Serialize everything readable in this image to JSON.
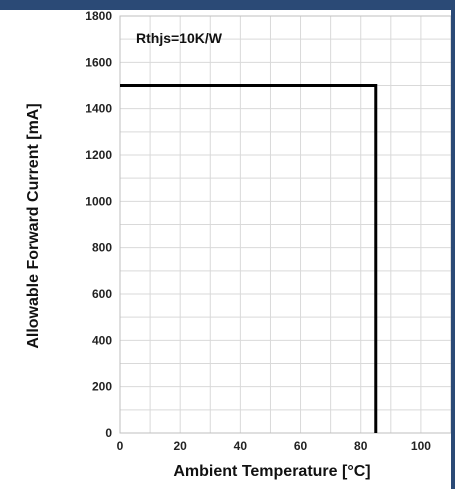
{
  "chart_data": {
    "type": "line",
    "xlabel": "Ambient Temperature [°C]",
    "ylabel": "Allowable Forward Current [mA]",
    "annotation": "Rthjs=10K/W",
    "xlim": [
      0,
      110
    ],
    "ylim": [
      0,
      1800
    ],
    "x_ticks": [
      0,
      20,
      40,
      60,
      80,
      100
    ],
    "y_ticks": [
      0,
      200,
      400,
      600,
      800,
      1000,
      1200,
      1400,
      1600,
      1800
    ],
    "grid": true,
    "legend": "none",
    "series": [
      {
        "x": [
          0,
          85,
          85
        ],
        "y": [
          1500,
          1500,
          0
        ],
        "color": "#000000"
      }
    ]
  },
  "colors": {
    "frame_bar": "#2b4a76",
    "grid": "#d9d9d9",
    "line": "#000000"
  }
}
